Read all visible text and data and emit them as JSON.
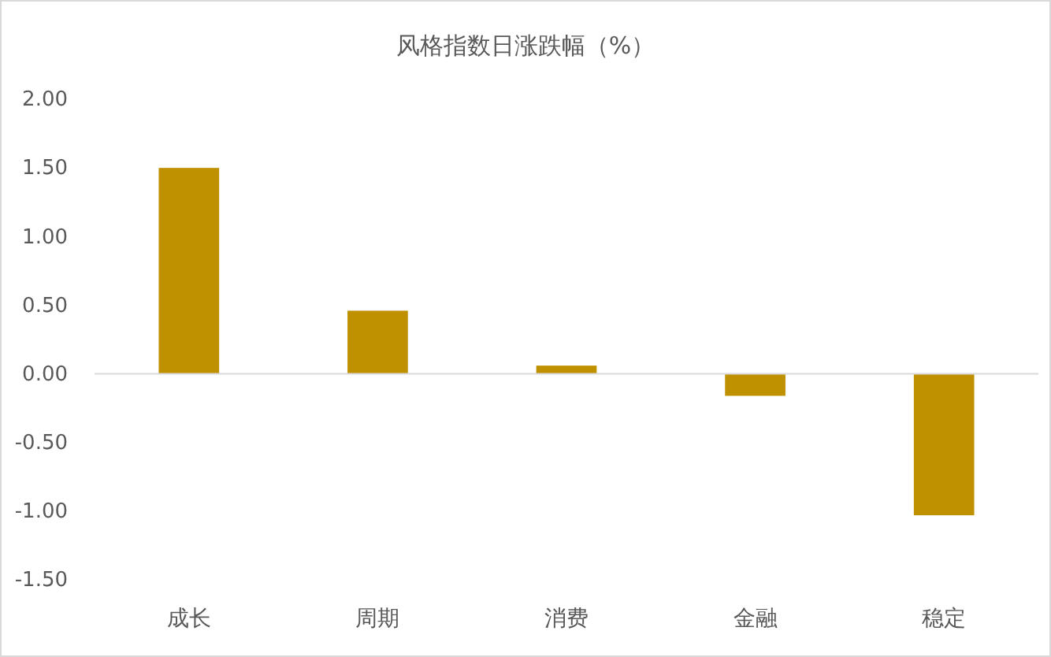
{
  "chart_data": {
    "type": "bar",
    "title": "风格指数日涨跌幅（%）",
    "categories": [
      "成长",
      "周期",
      "消费",
      "金融",
      "稳定"
    ],
    "values": [
      1.5,
      0.46,
      0.06,
      -0.16,
      -1.03
    ],
    "color": "#bf9000",
    "ylim": [
      -1.5,
      2.0
    ],
    "yticks": [
      {
        "value": -1.5,
        "label": "-1.50"
      },
      {
        "value": -1,
        "label": "-1.00"
      },
      {
        "value": -0.5,
        "label": "-0.50"
      },
      {
        "value": 0,
        "label": "0.00"
      },
      {
        "value": 0.5,
        "label": "0.50"
      },
      {
        "value": 1,
        "label": "1.00"
      },
      {
        "value": 1.5,
        "label": "1.50"
      },
      {
        "value": 2,
        "label": "2.00"
      }
    ],
    "tick_labels": "xy"
  }
}
